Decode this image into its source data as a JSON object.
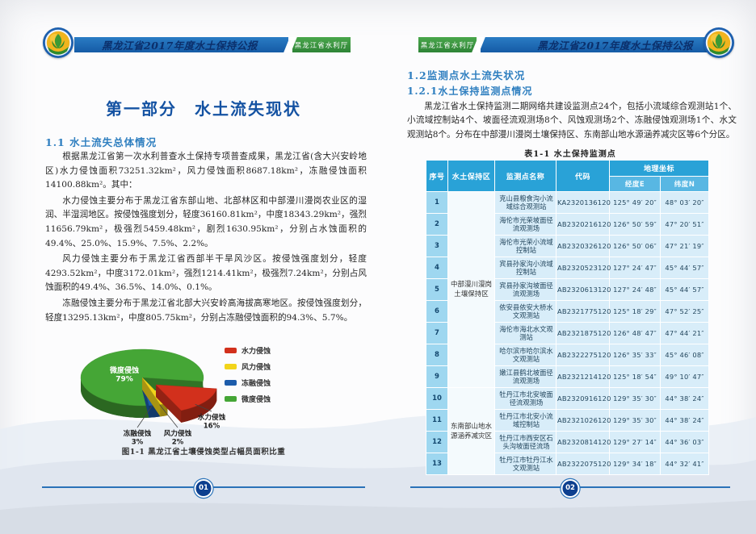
{
  "meta": {
    "report_title": "黑龙江省2017年度水土保持公报",
    "department": "黑龙江省水利厅"
  },
  "left_page": {
    "page_number": "01",
    "part_title": "第一部分　水土流失现状",
    "section_1_1": {
      "heading": "1.1 水土流失总体情况",
      "paragraphs": [
        "根据黑龙江省第一次水利普查水土保持专项普查成果，黑龙江省(含大兴安岭地区)水力侵蚀面积73251.32km²，风力侵蚀面积8687.18km²，冻融侵蚀面积14100.88km²。其中：",
        "水力侵蚀主要分布于黑龙江省东部山地、北部林区和中部漫川漫岗农业区的湿润、半湿润地区。按侵蚀强度划分，轻度36160.81km²，中度18343.29km²，强烈11656.79km²，极强烈5459.48km²，剧烈1630.95km²，分别占水蚀面积的49.4%、25.0%、15.9%、7.5%、2.2%。",
        "风力侵蚀主要分布于黑龙江省西部半干旱风沙区。按侵蚀强度划分，轻度4293.52km²，中度3172.01km²，强烈1214.41km²，极强烈7.24km²，分别占风蚀面积的49.4%、36.5%、14.0%、0.1%。",
        "冻融侵蚀主要分布于黑龙江省北部大兴安岭高海拔高寒地区。按侵蚀强度划分，轻度13295.13km²，中度805.75km²，分别占冻融侵蚀面积的94.3%、5.7%。"
      ]
    },
    "figure": {
      "caption": "图1-1  黑龙江省土壤侵蚀类型占幅员面积比重"
    }
  },
  "right_page": {
    "page_number": "02",
    "section_1_2": "1.2监测点水土流失状况",
    "section_1_2_1": "1.2.1水土保持监测点情况",
    "paragraph": "黑龙江省水土保持监测二期网络共建设监测点24个，包括小流域综合观测站1个、小流域控制站4个、坡面径流观测场8个、风蚀观测场2个、冻融侵蚀观测场1个、水文观测站8个。分布在中部漫川漫岗土壤保持区、东南部山地水源涵养减灾区等6个分区。",
    "table": {
      "title": "表1-1  水土保持监测点",
      "headers": {
        "seq": "序号",
        "region": "水土保持区",
        "station": "监测点名称",
        "code": "代码",
        "geo": "地理坐标",
        "lon": "经度E",
        "lat": "纬度N"
      },
      "groups": [
        {
          "region": "中部漫川漫岗土壤保持区",
          "rows": [
            {
              "seq": "1",
              "station": "克山县粮食沟小流域综合观测站",
              "code": "KA2320136120",
              "lon": "125° 49′ 20″",
              "lat": "48° 03′ 20″"
            },
            {
              "seq": "2",
              "station": "海伦市光荣坡面径流观测场",
              "code": "AB2320216120",
              "lon": "126° 50′ 59″",
              "lat": "47° 20′ 51″"
            },
            {
              "seq": "3",
              "station": "海伦市光荣小流域控制站",
              "code": "AB2320326120",
              "lon": "126° 50′ 06″",
              "lat": "47° 21′ 19″"
            },
            {
              "seq": "4",
              "station": "宾县孙家沟小流域控制站",
              "code": "AB2320523120",
              "lon": "127° 24′ 47″",
              "lat": "45° 44′ 57″"
            },
            {
              "seq": "5",
              "station": "宾县孙家沟坡面径流观测场",
              "code": "AB2320613120",
              "lon": "127° 24′ 48″",
              "lat": "45° 44′ 57″"
            },
            {
              "seq": "6",
              "station": "依安县依安大桥水文观测站",
              "code": "AB2321775120",
              "lon": "125° 18′ 29″",
              "lat": "47° 52′ 25″"
            },
            {
              "seq": "7",
              "station": "海伦市海北水文观测站",
              "code": "AB2321875120",
              "lon": "126° 48′ 47″",
              "lat": "47° 44′ 21″"
            },
            {
              "seq": "8",
              "station": "哈尔滨市哈尔滨水文观测站",
              "code": "AB2322275120",
              "lon": "126° 35′ 33″",
              "lat": "45° 46′ 08″"
            },
            {
              "seq": "9",
              "station": "嫩江县鹤北坡面径流观测场",
              "code": "AB2321214120",
              "lon": "125° 18′ 54″",
              "lat": "49° 10′ 47″"
            }
          ]
        },
        {
          "region": "东南部山地水源涵养减灾区",
          "rows": [
            {
              "seq": "10",
              "station": "牡丹江市北安坡面径流观测场",
              "code": "AB2320916120",
              "lon": "129° 35′ 30″",
              "lat": "44° 38′ 24″"
            },
            {
              "seq": "11",
              "station": "牡丹江市北安小流域控制站",
              "code": "AB2321026120",
              "lon": "129° 35′ 30″",
              "lat": "44° 38′ 24″"
            },
            {
              "seq": "12",
              "station": "牡丹江市西安区石头沟坡面径流场",
              "code": "AB2320814120",
              "lon": "129° 27′ 14″",
              "lat": "44° 36′ 03″"
            },
            {
              "seq": "13",
              "station": "牡丹江市牡丹江水文观测站",
              "code": "AB2322075120",
              "lon": "129° 34′ 18″",
              "lat": "44° 32′ 41″"
            }
          ]
        }
      ]
    }
  },
  "chart_data": {
    "type": "pie",
    "title": "图1-1  黑龙江省土壤侵蚀类型占幅员面积比重",
    "unit": "%",
    "style": "3d-exploded",
    "legend_position": "right",
    "slices": [
      {
        "label": "水力侵蚀",
        "value": 16,
        "color": "#d2301c",
        "exploded": true
      },
      {
        "label": "风力侵蚀",
        "value": 2,
        "color": "#f2d41a"
      },
      {
        "label": "冻融侵蚀",
        "value": 3,
        "color": "#1d5cab"
      },
      {
        "label": "微度侵蚀",
        "value": 79,
        "color": "#45a636"
      }
    ],
    "colors": {
      "header_bar": "#1b6db8",
      "dept_green": "#3f9b41",
      "table_header": "#29a2d7",
      "footer_line": "#2a72b8"
    }
  }
}
